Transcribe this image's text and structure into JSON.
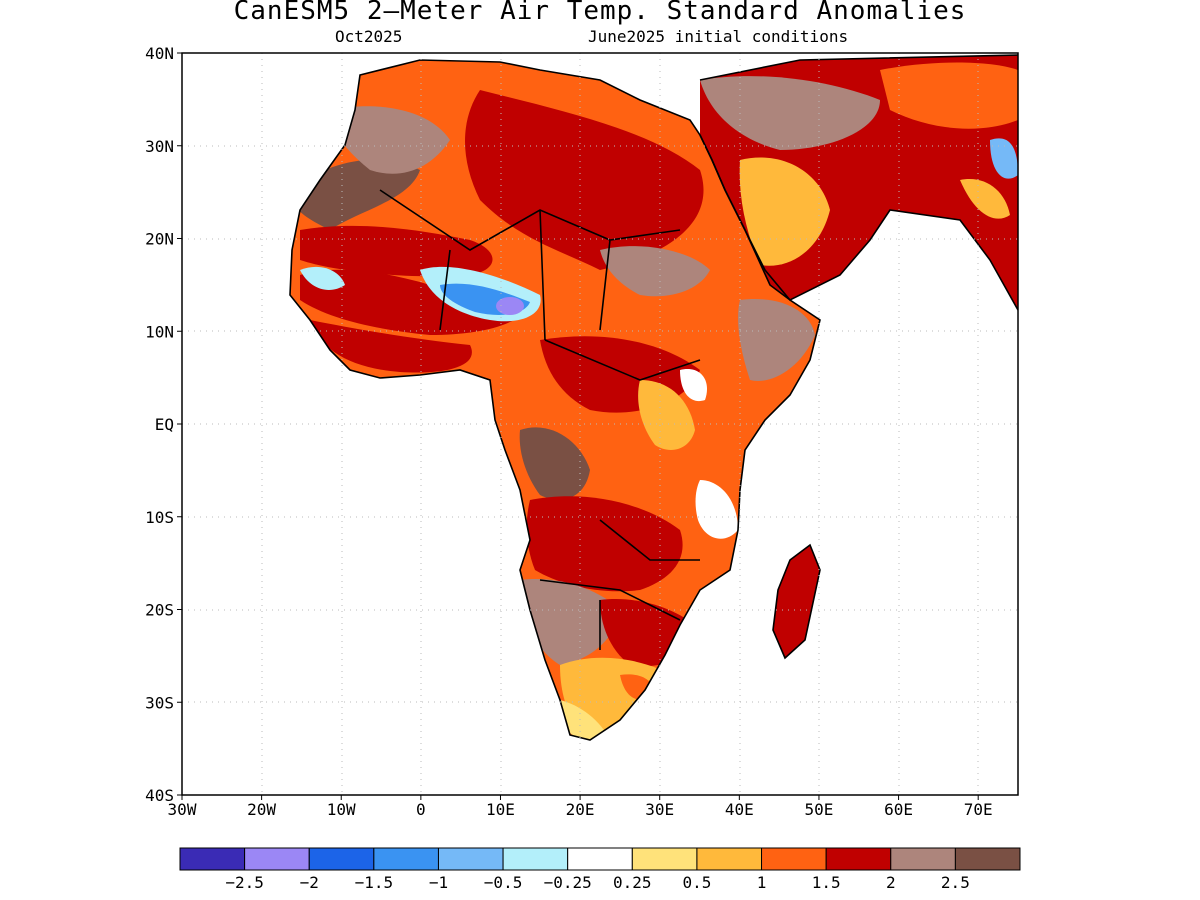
{
  "title": "CanESM5 2–Meter Air Temp. Standard Anomalies",
  "subtitle_left": "Oct2025",
  "subtitle_right": "June2025 initial conditions",
  "axes": {
    "lat_labels": [
      "40N",
      "30N",
      "20N",
      "10N",
      "EQ",
      "10S",
      "20S",
      "30S",
      "40S"
    ],
    "lon_labels": [
      "30W",
      "20W",
      "10W",
      "0",
      "10E",
      "20E",
      "30E",
      "40E",
      "50E",
      "60E",
      "70E"
    ],
    "lon_range": [
      -30,
      75
    ],
    "lat_range": [
      -40,
      40
    ],
    "grid": true
  },
  "colorbar": {
    "colors": [
      "#3a2bb5",
      "#9b87f5",
      "#1c64e8",
      "#3a93f2",
      "#75b9f7",
      "#b3effa",
      "#ffffff",
      "#ffe27a",
      "#ffb93b",
      "#ff6212",
      "#c00000",
      "#ad857c",
      "#7a5044"
    ],
    "labels": [
      "−2.5",
      "−2",
      "−1.5",
      "−1",
      "−0.5",
      "−0.25",
      "0.25",
      "0.5",
      "1",
      "1.5",
      "2",
      "2.5"
    ]
  }
}
